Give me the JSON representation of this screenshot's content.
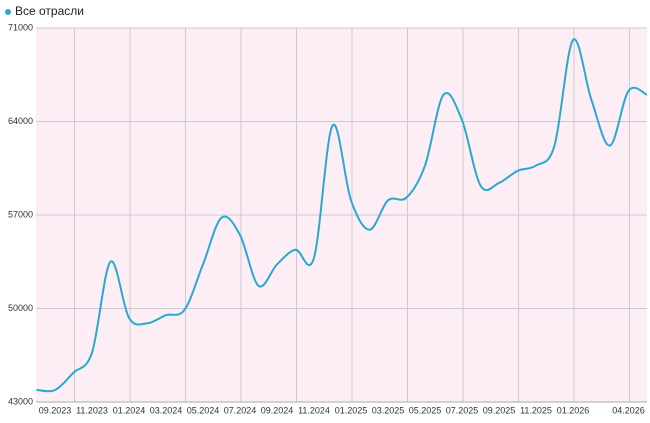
{
  "chart_data": {
    "type": "line",
    "legend_position": "top-left",
    "grid": true,
    "categories": [
      null,
      "09.2023",
      null,
      "11.2023",
      null,
      "01.2024",
      null,
      "03.2024",
      null,
      "05.2024",
      null,
      "07.2024",
      null,
      "09.2024",
      null,
      "11.2024",
      null,
      "01.2025",
      null,
      "03.2025",
      null,
      "05.2025",
      null,
      "07.2025",
      null,
      "09.2025",
      null,
      "11.2025",
      null,
      "01.2026",
      null,
      null,
      "04.2026",
      null
    ],
    "series": [
      {
        "name": "Все отрасли",
        "color": "#2aa8cf",
        "values": [
          43900,
          43900,
          45200,
          46700,
          53500,
          49300,
          48900,
          49500,
          49900,
          53300,
          56800,
          55500,
          51700,
          53300,
          54400,
          53800,
          63700,
          58100,
          55900,
          58100,
          58300,
          60700,
          66000,
          64100,
          59200,
          59400,
          60300,
          60700,
          62200,
          70100,
          65600,
          62200,
          66300,
          66000
        ]
      }
    ],
    "ylim": [
      43000,
      71000
    ],
    "yticks": [
      43000,
      50000,
      57000,
      64000,
      71000
    ]
  }
}
